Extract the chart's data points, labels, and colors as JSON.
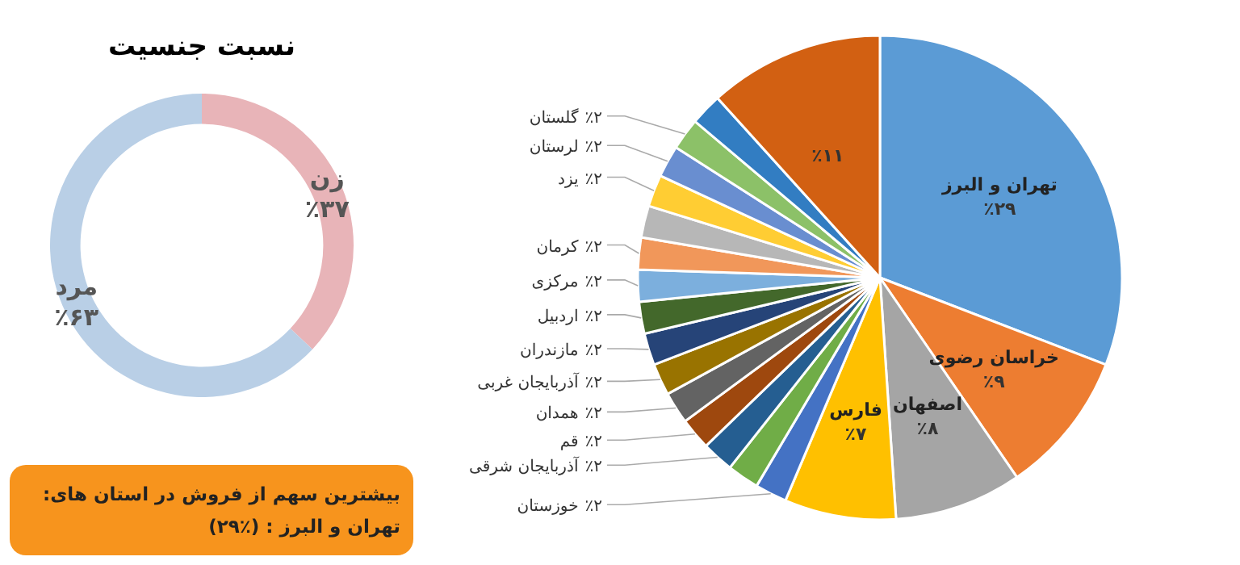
{
  "chart_data": [
    {
      "type": "donut",
      "title": "نسبت جنسیت",
      "categories": [
        "زن",
        "مرد"
      ],
      "values": [
        37,
        63
      ],
      "colors": [
        "#e8b4b8",
        "#b9cfe6"
      ],
      "value_labels": [
        "٪۳۷",
        "٪۶۳"
      ]
    },
    {
      "type": "pie",
      "categories": [
        "تهران و البرز",
        "خراسان رضوی",
        "اصفهان",
        "فارس",
        "خوزستان",
        null,
        "آذربایجان شرقی",
        "قم",
        "همدان",
        "آذربایجان غربی",
        "مازندران",
        "اردبیل",
        "مرکزی",
        "کرمان",
        null,
        "یزد",
        "لرستان",
        "گلستان",
        null,
        null
      ],
      "values": [
        29,
        9,
        8,
        7,
        2,
        2,
        2,
        2,
        2,
        2,
        2,
        2,
        2,
        2,
        2,
        2,
        2,
        2,
        2,
        11
      ],
      "colors": [
        "#5b9bd5",
        "#ed7d31",
        "#a5a5a5",
        "#ffc000",
        "#4472c4",
        "#70ad47",
        "#255e91",
        "#9e480e",
        "#636363",
        "#997300",
        "#264478",
        "#43682b",
        "#7cafdd",
        "#f1975a",
        "#b7b7b7",
        "#ffcd33",
        "#698ed0",
        "#8cc168",
        "#327dc2",
        "#d26012"
      ],
      "value_labels": [
        "٪۲۹",
        "٪۹",
        "٪۸",
        "٪۷",
        "٪۲",
        null,
        "٪۲",
        "٪۲",
        "٪۲",
        "٪۲",
        "٪۲",
        "٪۲",
        "٪۲",
        "٪۲",
        null,
        "٪۲",
        "٪۲",
        "٪۲",
        null,
        "٪۱۱"
      ],
      "annotations": [
        "بیشترین سهم از فروش در استان های:",
        "تهران و البرز : (٪۲۹)"
      ]
    }
  ]
}
